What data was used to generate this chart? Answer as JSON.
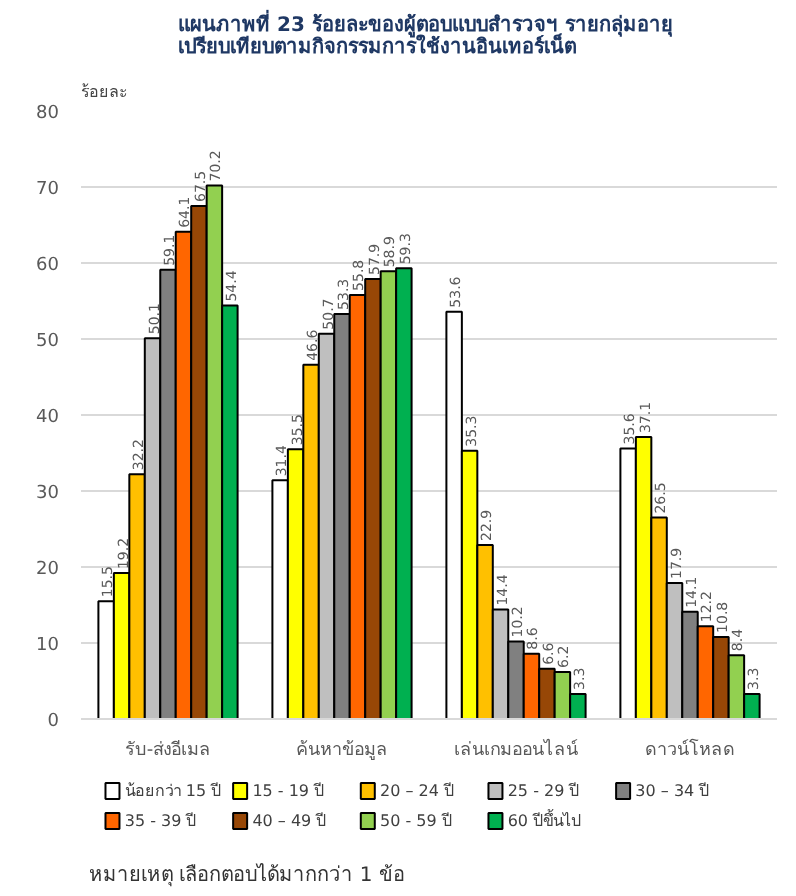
{
  "chart_data": {
    "type": "bar",
    "title": "แผนภาพที่  23 ร้อยละของผู้ตอบแบบสำรวจฯ รายกลุ่มอายุ\nเปรียบเทียบตามกิจกรรมการใช้งานอินเทอร์เน็ต",
    "ylabel": "ร้อยละ",
    "categories": [
      "รับ-ส่งอีเมล",
      "ค้นหาข้อมูล",
      "เล่นเกมออนไลน์",
      "ดาวน์โหลด"
    ],
    "series": [
      {
        "name": "น้อยกว่า 15 ปี",
        "color": "#ffffff",
        "values": [
          15.5,
          31.4,
          53.6,
          35.6
        ]
      },
      {
        "name": "15 - 19 ปี",
        "color": "#ffff00",
        "values": [
          19.2,
          35.5,
          35.3,
          37.1
        ]
      },
      {
        "name": "20 – 24 ปี",
        "color": "#ffc000",
        "values": [
          32.2,
          46.6,
          22.9,
          26.5
        ]
      },
      {
        "name": "25 - 29 ปี",
        "color": "#bfbfbf",
        "values": [
          50.1,
          50.7,
          14.4,
          17.9
        ]
      },
      {
        "name": "30 – 34 ปี",
        "color": "#808080",
        "values": [
          59.1,
          53.3,
          10.2,
          14.1
        ]
      },
      {
        "name": "35 - 39 ปี",
        "color": "#ff6600",
        "values": [
          64.1,
          55.8,
          8.6,
          12.2
        ]
      },
      {
        "name": "40 – 49 ปี",
        "color": "#974706",
        "values": [
          67.5,
          57.9,
          6.6,
          10.8
        ]
      },
      {
        "name": "50 - 59 ปี",
        "color": "#92d050",
        "values": [
          70.2,
          58.9,
          6.2,
          8.4
        ]
      },
      {
        "name": "60 ปีขึ้นไป",
        "color": "#00b050",
        "values": [
          54.4,
          59.3,
          3.3,
          3.3
        ]
      }
    ],
    "ylim": [
      0,
      80
    ],
    "yticks": [
      0,
      10,
      20,
      30,
      40,
      50,
      60,
      70,
      80
    ],
    "grid": "y",
    "legend": "bottom",
    "data_labels": true,
    "annotations": [
      "หมายเหตุ เลือกตอบได้มากกว่า 1 ข้อ"
    ]
  }
}
